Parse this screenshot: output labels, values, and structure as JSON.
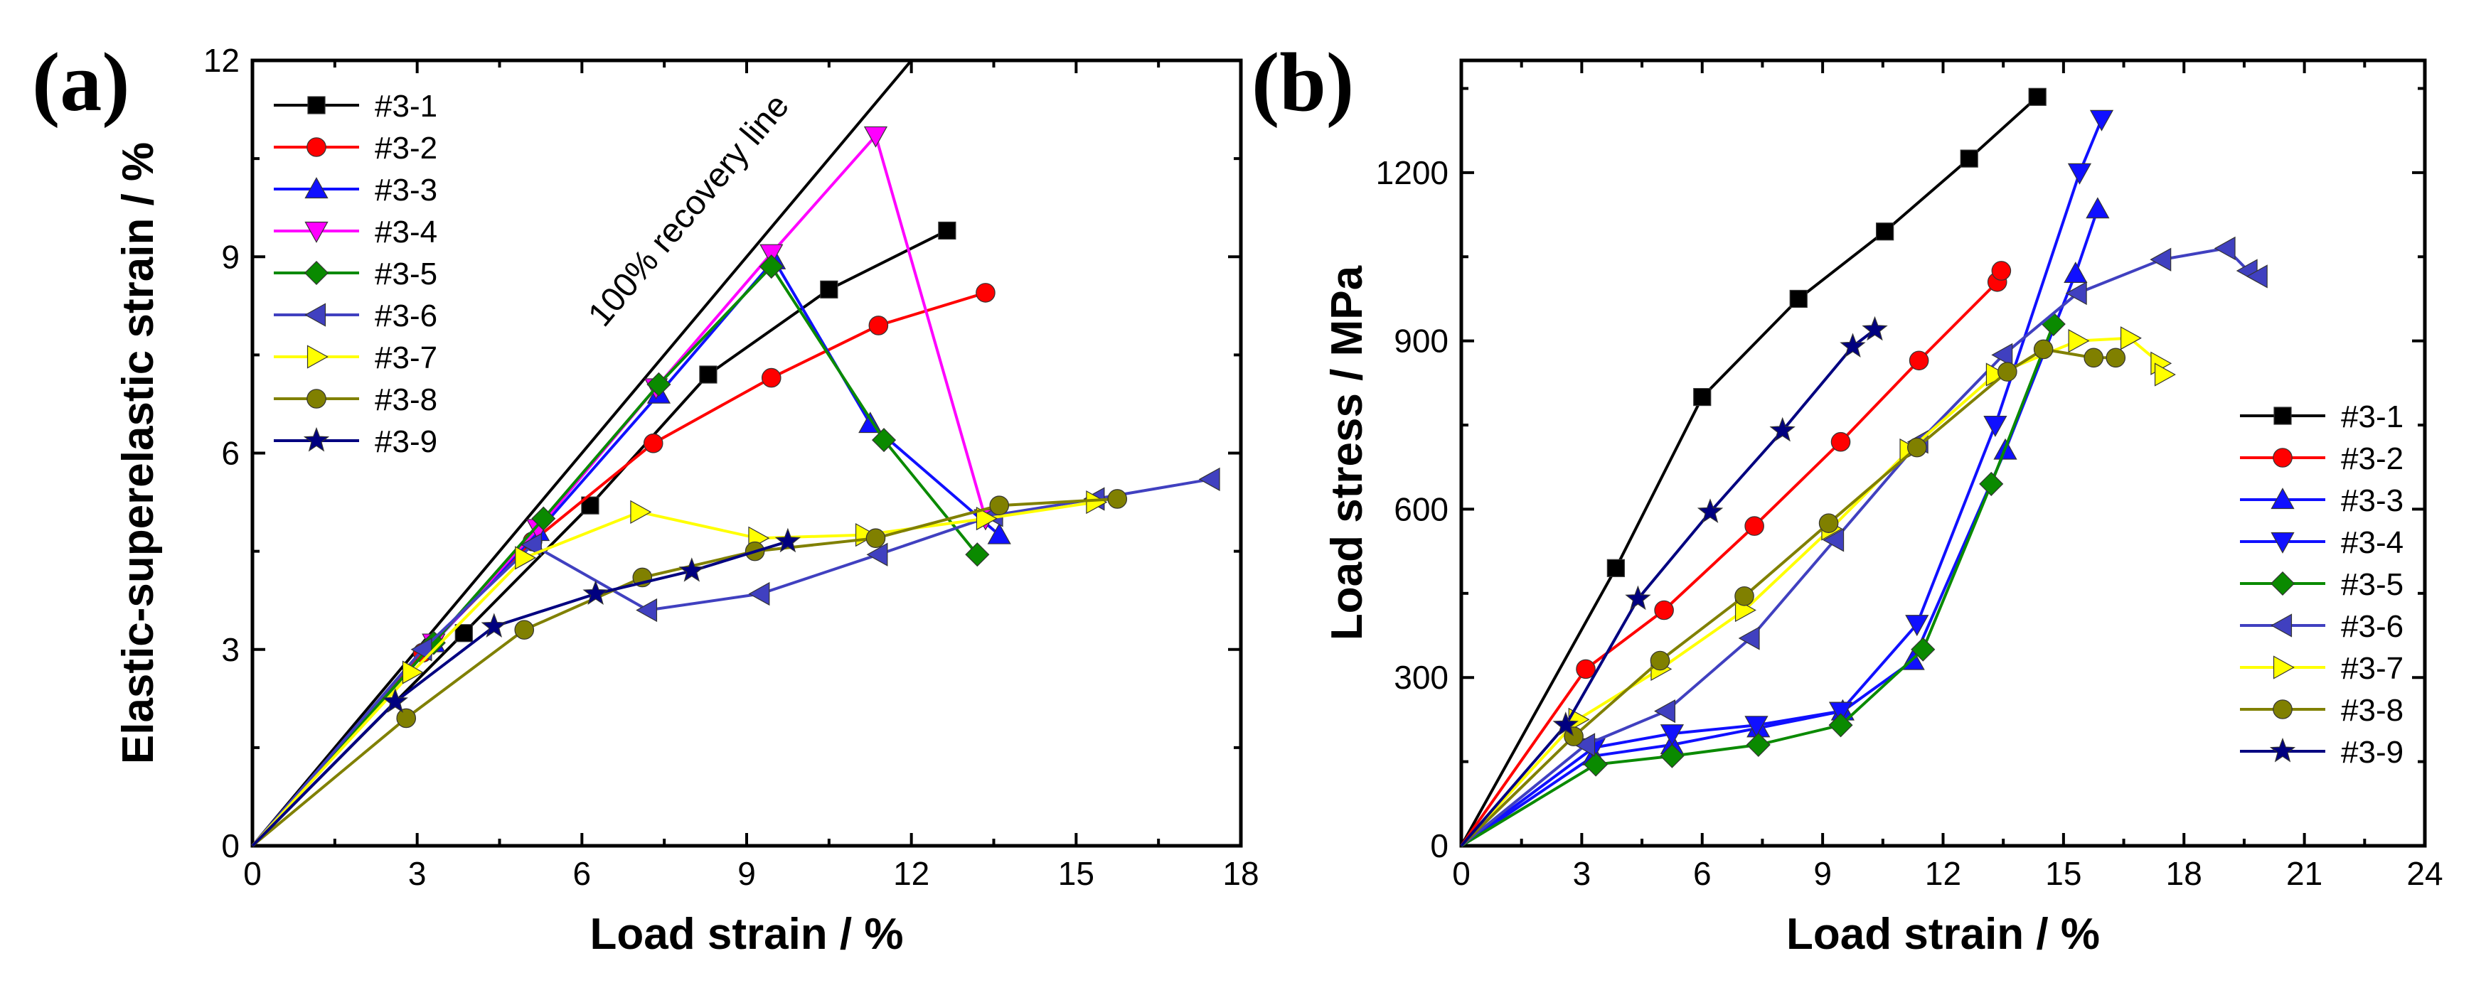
{
  "chart_data": [
    {
      "panel": "(a)",
      "type": "line",
      "xlabel": "Load strain / %",
      "ylabel": "Elastic-superelastic strain / %",
      "xlim": [
        0,
        18
      ],
      "ylim": [
        0,
        12
      ],
      "xticks": [
        0,
        3,
        6,
        9,
        12,
        15,
        18
      ],
      "yticks": [
        0,
        3,
        6,
        9,
        12
      ],
      "legend_position": "top-left",
      "annotation": "100% recovery line",
      "series": [
        {
          "name": "#3-1",
          "color": "#000000",
          "marker": "square",
          "x": [
            0,
            3.85,
            6.15,
            8.3,
            10.5,
            12.65
          ],
          "y": [
            0,
            3.25,
            5.2,
            7.2,
            8.5,
            9.4
          ]
        },
        {
          "name": "#3-2",
          "color": "#ff0000",
          "marker": "circle",
          "x": [
            0,
            3.1,
            5.1,
            7.3,
            9.45,
            11.4,
            13.35
          ],
          "y": [
            0,
            2.95,
            4.65,
            6.15,
            7.15,
            7.95,
            8.45
          ]
        },
        {
          "name": "#3-3",
          "color": "#1010ff",
          "marker": "triangle-up",
          "x": [
            0,
            3.3,
            5.2,
            7.4,
            9.5,
            11.25,
            13.6
          ],
          "y": [
            0,
            3.1,
            4.8,
            6.9,
            8.95,
            6.45,
            4.75
          ]
        },
        {
          "name": "#3-4",
          "color": "#ff00ff",
          "marker": "triangle-down",
          "x": [
            0,
            3.3,
            5.2,
            7.35,
            9.45,
            11.35,
            13.35
          ],
          "y": [
            0,
            3.1,
            4.85,
            7.0,
            9.05,
            10.85,
            5.0
          ]
        },
        {
          "name": "#3-5",
          "color": "#0a8a00",
          "marker": "diamond",
          "x": [
            0,
            3.3,
            5.3,
            7.4,
            9.45,
            11.5,
            13.2
          ],
          "y": [
            0,
            3.1,
            5.0,
            7.05,
            8.85,
            6.2,
            4.45
          ]
        },
        {
          "name": "#3-6",
          "color": "#4040c0",
          "marker": "triangle-left",
          "x": [
            0,
            3.1,
            5.1,
            7.2,
            9.25,
            11.4,
            13.5,
            15.35,
            17.45
          ],
          "y": [
            0,
            3.0,
            4.6,
            3.6,
            3.85,
            4.45,
            5.05,
            5.3,
            5.6
          ]
        },
        {
          "name": "#3-7",
          "color": "#ffff00",
          "marker": "triangle-right",
          "x": [
            0,
            2.9,
            4.95,
            7.05,
            9.2,
            11.15,
            13.35,
            15.35
          ],
          "y": [
            0,
            2.65,
            4.4,
            5.1,
            4.7,
            4.75,
            5.0,
            5.25
          ]
        },
        {
          "name": "#3-8",
          "color": "#808000",
          "marker": "circle",
          "x": [
            0,
            2.8,
            4.95,
            7.1,
            9.15,
            11.35,
            13.6,
            15.75
          ],
          "y": [
            0,
            1.95,
            3.3,
            4.1,
            4.5,
            4.7,
            5.2,
            5.3
          ]
        },
        {
          "name": "#3-9",
          "color": "#000080",
          "marker": "star",
          "x": [
            0,
            2.6,
            4.4,
            6.25,
            8.0,
            9.75
          ],
          "y": [
            0,
            2.2,
            3.35,
            3.85,
            4.2,
            4.65
          ]
        }
      ]
    },
    {
      "panel": "(b)",
      "type": "line",
      "xlabel": "Load strain / %",
      "ylabel": "Load stress / MPa",
      "xlim": [
        0,
        24
      ],
      "ylim": [
        0,
        1400
      ],
      "xticks": [
        0,
        3,
        6,
        9,
        12,
        15,
        18,
        21,
        24
      ],
      "yticks": [
        0,
        300,
        600,
        900,
        1200
      ],
      "legend_position": "bottom-right",
      "series": [
        {
          "name": "#3-1",
          "color": "#000000",
          "marker": "square",
          "x": [
            0,
            3.85,
            6.0,
            8.4,
            10.55,
            12.65,
            14.35
          ],
          "y": [
            0,
            495,
            800,
            975,
            1095,
            1225,
            1335
          ]
        },
        {
          "name": "#3-2",
          "color": "#ff0000",
          "marker": "circle",
          "x": [
            0,
            3.1,
            5.05,
            7.3,
            9.45,
            11.4,
            13.35,
            13.45
          ],
          "y": [
            0,
            315,
            420,
            570,
            720,
            865,
            1005,
            1025
          ]
        },
        {
          "name": "#3-3",
          "color": "#1010ff",
          "marker": "triangle-up",
          "x": [
            0,
            3.3,
            5.25,
            7.4,
            9.5,
            11.25,
            13.55,
            15.3,
            15.85
          ],
          "y": [
            0,
            160,
            180,
            210,
            240,
            330,
            705,
            1020,
            1135
          ]
        },
        {
          "name": "#3-4",
          "color": "#1010ff",
          "marker": "triangle-down",
          "x": [
            0,
            3.3,
            5.25,
            7.35,
            9.45,
            11.35,
            13.3,
            15.4,
            15.95
          ],
          "y": [
            0,
            175,
            200,
            215,
            240,
            395,
            750,
            1200,
            1295
          ]
        },
        {
          "name": "#3-5",
          "color": "#0a8a00",
          "marker": "diamond",
          "x": [
            0,
            3.35,
            5.25,
            7.4,
            9.45,
            11.5,
            13.2,
            14.75
          ],
          "y": [
            0,
            145,
            160,
            180,
            215,
            350,
            645,
            930
          ]
        },
        {
          "name": "#3-6",
          "color": "#4040c0",
          "marker": "triangle-left",
          "x": [
            0,
            3.1,
            5.1,
            7.2,
            9.3,
            11.4,
            13.5,
            15.35,
            17.45,
            19.05,
            19.6,
            19.85
          ],
          "y": [
            0,
            180,
            240,
            370,
            545,
            720,
            875,
            985,
            1045,
            1065,
            1025,
            1015
          ]
        },
        {
          "name": "#3-7",
          "color": "#ffff00",
          "marker": "triangle-right",
          "x": [
            0,
            2.9,
            4.95,
            7.05,
            9.2,
            11.15,
            13.3,
            15.35,
            16.65,
            17.4,
            17.5
          ],
          "y": [
            0,
            225,
            315,
            420,
            565,
            705,
            840,
            900,
            905,
            860,
            840
          ]
        },
        {
          "name": "#3-8",
          "color": "#808000",
          "marker": "circle",
          "x": [
            0,
            2.8,
            4.95,
            7.05,
            9.15,
            11.35,
            13.6,
            14.5,
            15.75,
            16.3
          ],
          "y": [
            0,
            195,
            330,
            445,
            575,
            710,
            845,
            885,
            870,
            870
          ]
        },
        {
          "name": "#3-9",
          "color": "#000080",
          "marker": "star",
          "x": [
            0,
            2.6,
            4.4,
            6.2,
            8.0,
            9.75,
            10.3
          ],
          "y": [
            0,
            215,
            440,
            595,
            740,
            890,
            920
          ]
        }
      ]
    }
  ]
}
